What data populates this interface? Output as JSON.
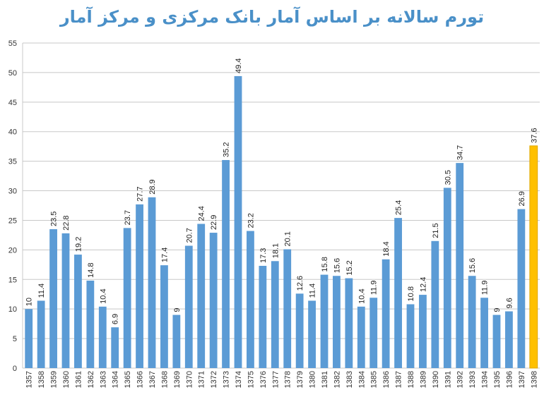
{
  "chart_data": {
    "type": "bar",
    "title": "تورم سالانه بر اساس آمار بانک مرکزی و مرکز آمار",
    "xlabel": "",
    "ylabel": "",
    "ylim": [
      0,
      55
    ],
    "yticks": [
      0,
      5,
      10,
      15,
      20,
      25,
      30,
      35,
      40,
      45,
      50,
      55
    ],
    "grid": true,
    "colors": {
      "bar": "#5b9bd5",
      "highlight": "#ffc000",
      "highlight_stroke": "#e0a800"
    },
    "highlight_category": "1398",
    "categories": [
      "1357",
      "1358",
      "1359",
      "1360",
      "1361",
      "1362",
      "1363",
      "1364",
      "1365",
      "1366",
      "1367",
      "1368",
      "1369",
      "1370",
      "1371",
      "1372",
      "1373",
      "1374",
      "1375",
      "1376",
      "1377",
      "1378",
      "1379",
      "1380",
      "1381",
      "1382",
      "1383",
      "1384",
      "1385",
      "1386",
      "1387",
      "1388",
      "1389",
      "1390",
      "1391",
      "1392",
      "1393",
      "1394",
      "1395",
      "1396",
      "1397",
      "1398"
    ],
    "values": [
      10,
      11.4,
      23.5,
      22.8,
      19.2,
      14.8,
      10.4,
      6.9,
      23.7,
      27.7,
      28.9,
      17.4,
      9,
      20.7,
      24.4,
      22.9,
      35.2,
      49.4,
      23.2,
      17.3,
      18.1,
      20.1,
      12.6,
      11.4,
      15.8,
      15.6,
      15.2,
      10.4,
      11.9,
      18.4,
      25.4,
      10.8,
      12.4,
      21.5,
      30.5,
      34.7,
      15.6,
      11.9,
      9,
      9.6,
      26.9,
      37.6
    ]
  }
}
